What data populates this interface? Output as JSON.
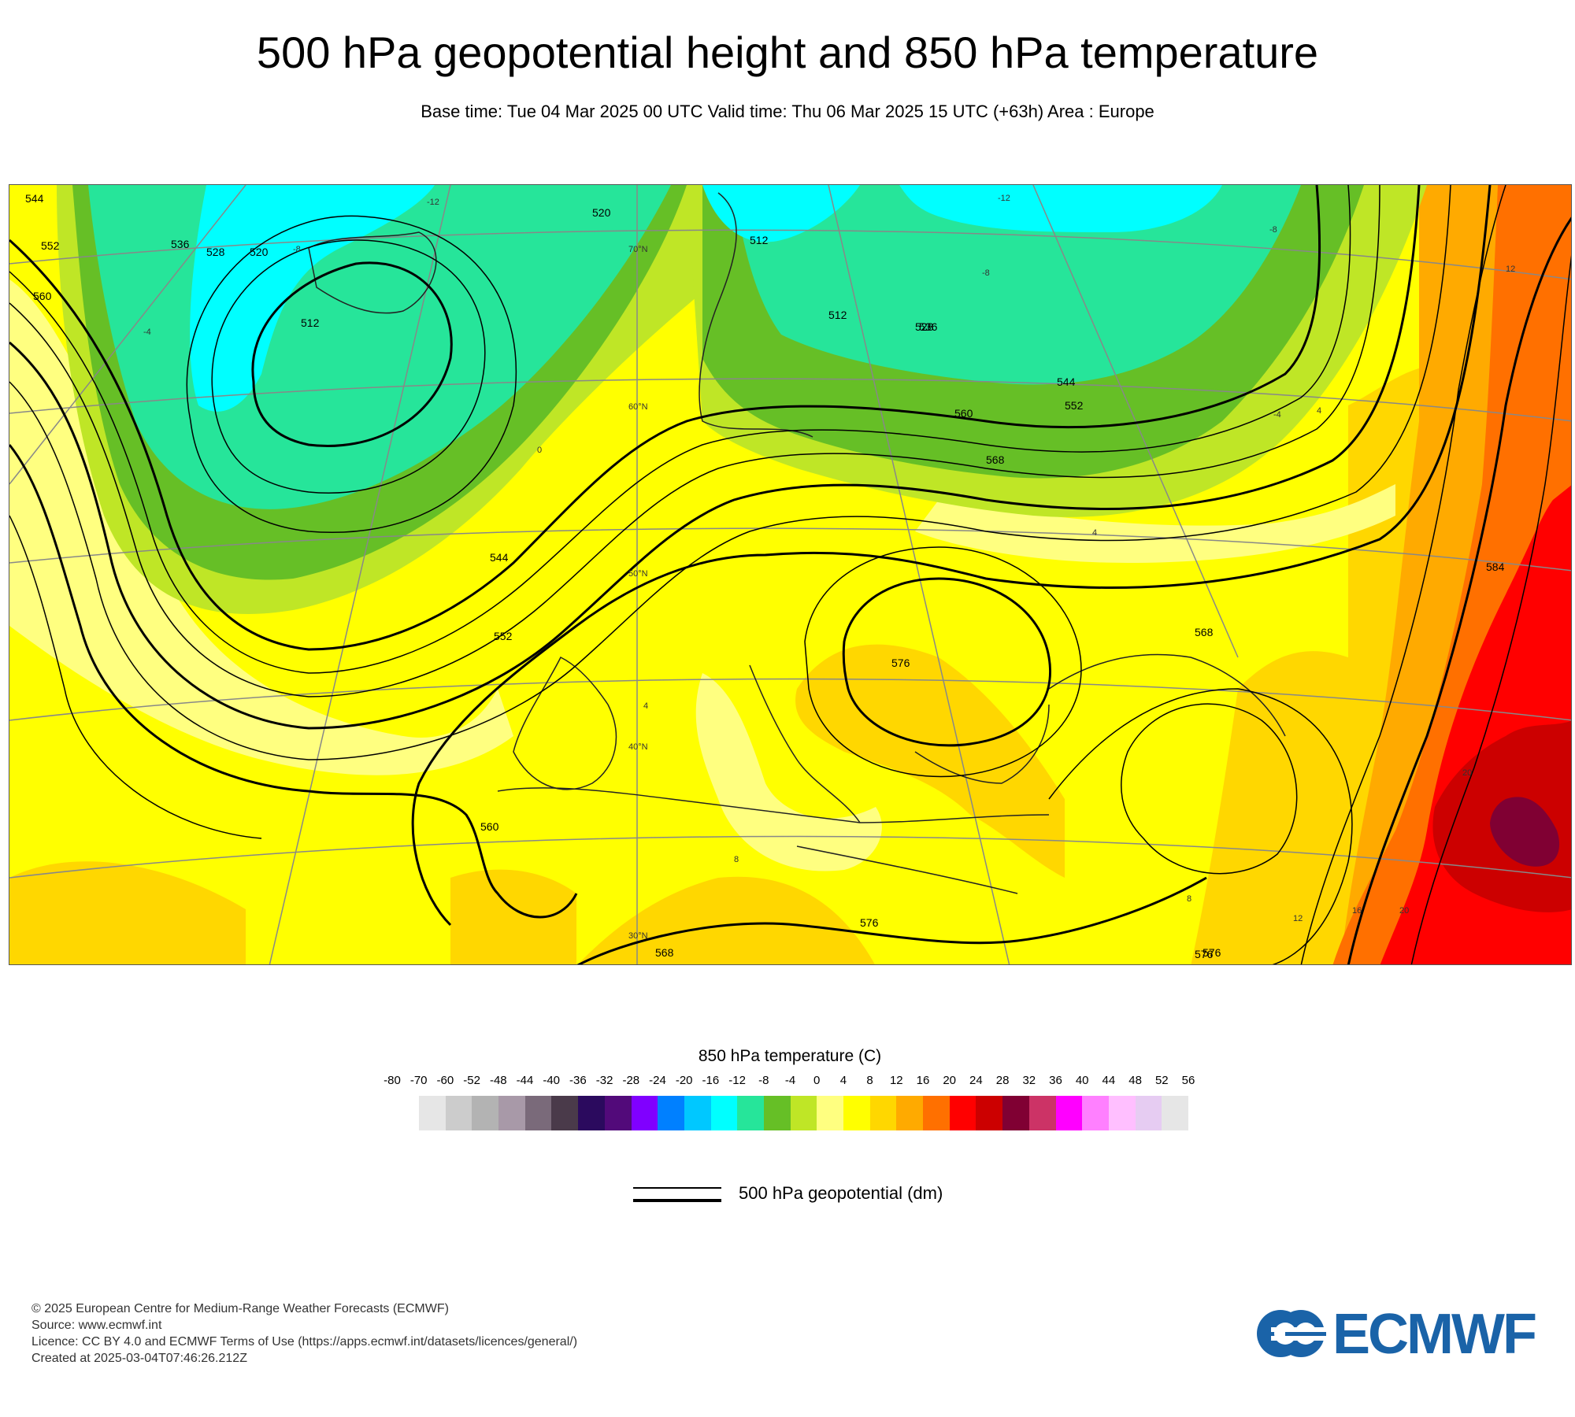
{
  "title": "500 hPa geopotential height and 850 hPa temperature",
  "subtitle": "Base time: Tue 04 Mar 2025 00 UTC Valid time: Thu 06 Mar 2025 15 UTC (+63h) Area : Europe",
  "map": {
    "contour_labels": [
      "544",
      "552",
      "560",
      "512",
      "520",
      "528",
      "536",
      "512",
      "520",
      "512",
      "528",
      "536",
      "544",
      "552",
      "560",
      "568",
      "568",
      "576",
      "576",
      "576",
      "576",
      "584",
      "568",
      "552",
      "544",
      "560"
    ],
    "latitude_labels": [
      "70°N",
      "60°N",
      "50°N",
      "40°N",
      "30°N"
    ],
    "temperature_labels": [
      "-12",
      "-12",
      "-8",
      "-8",
      "-8",
      "-4",
      "-4",
      "0",
      "4",
      "4",
      "4",
      "8",
      "8",
      "12",
      "12",
      "16",
      "20",
      "20"
    ]
  },
  "colorbar": {
    "title": "850 hPa temperature (C)",
    "ticks": [
      "-80",
      "-70",
      "-60",
      "-52",
      "-48",
      "-44",
      "-40",
      "-36",
      "-32",
      "-28",
      "-24",
      "-20",
      "-16",
      "-12",
      "-8",
      "-4",
      "0",
      "4",
      "8",
      "12",
      "16",
      "20",
      "24",
      "28",
      "32",
      "36",
      "40",
      "44",
      "48",
      "52",
      "56"
    ],
    "colors": [
      "#e6e6e6",
      "#cccccc",
      "#b3b3b3",
      "#a899a8",
      "#7a6a7a",
      "#4a3a4a",
      "#2b0a5e",
      "#520a7a",
      "#8000ff",
      "#0080ff",
      "#00c8ff",
      "#00ffff",
      "#26e59a",
      "#66bf26",
      "#bfe626",
      "#ffff80",
      "#ffff00",
      "#ffd700",
      "#ffaa00",
      "#ff7000",
      "#ff0000",
      "#cc0000",
      "#800033",
      "#cc3366",
      "#ff00ff",
      "#ff80ff",
      "#ffbfff",
      "#e6ccf2",
      "#e6e6e6"
    ]
  },
  "legend": {
    "label": "500 hPa geopotential (dm)"
  },
  "footer": {
    "line1": "© 2025 European Centre for Medium-Range Weather Forecasts (ECMWF)",
    "line2": "Source: www.ecmwf.int",
    "line3": "Licence: CC BY 4.0 and ECMWF Terms of Use (https://apps.ecmwf.int/datasets/licences/general/)",
    "line4": "Created at 2025-03-04T07:46:26.212Z"
  },
  "logo": {
    "text": "ECMWF",
    "color": "#1a63a8"
  }
}
